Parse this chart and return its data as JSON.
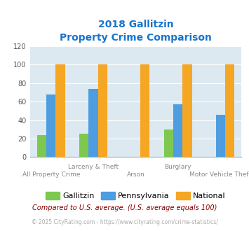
{
  "title_line1": "2018 Gallitzin",
  "title_line2": "Property Crime Comparison",
  "title_color": "#1874cd",
  "categories": [
    "All Property Crime",
    "Larceny & Theft",
    "Arson",
    "Burglary",
    "Motor Vehicle Theft"
  ],
  "top_labels": [
    "",
    "Larceny & Theft",
    "",
    "Burglary",
    ""
  ],
  "bottom_labels": [
    "All Property Crime",
    "",
    "Arson",
    "",
    "Motor Vehicle Theft"
  ],
  "gallitzin": [
    24,
    25,
    0,
    30,
    0
  ],
  "pennsylvania": [
    68,
    74,
    0,
    57,
    46
  ],
  "national": [
    100,
    100,
    100,
    100,
    100
  ],
  "bar_color_gallitzin": "#7ec850",
  "bar_color_pennsylvania": "#4d9de0",
  "bar_color_national": "#f5a623",
  "ylim": [
    0,
    120
  ],
  "yticks": [
    0,
    20,
    40,
    60,
    80,
    100,
    120
  ],
  "plot_bg": "#dce9f0",
  "legend_labels": [
    "Gallitzin",
    "Pennsylvania",
    "National"
  ],
  "footnote1": "Compared to U.S. average. (U.S. average equals 100)",
  "footnote2": "© 2025 CityRating.com - https://www.cityrating.com/crime-statistics/",
  "footnote1_color": "#8b0000",
  "footnote2_color": "#aaaaaa",
  "xlabel_color": "#888888",
  "bar_width": 0.22
}
